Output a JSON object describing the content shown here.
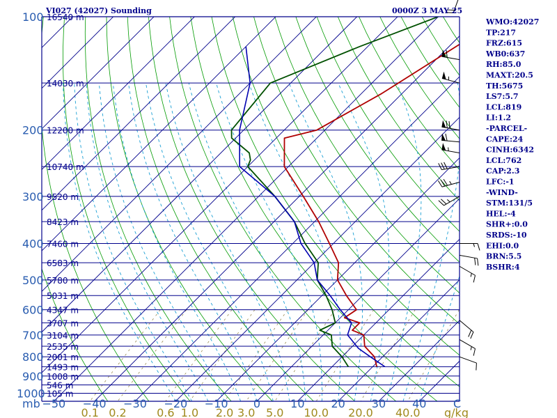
{
  "chart_data": {
    "type": "line",
    "title_left": "VI027 (42027) Sounding",
    "title_right": "0000Z  3 MAY 25",
    "pressure_ticks": [
      100,
      200,
      300,
      400,
      500,
      600,
      700,
      800,
      900,
      1000
    ],
    "mb_label": "mb",
    "temperature_ticks": [
      -50,
      -40,
      -30,
      -20,
      -10,
      0,
      10,
      20,
      30,
      40
    ],
    "temperature_unit": "C",
    "mixing_ratio_ticks": [
      "0.1",
      "0.2",
      "0.6",
      "1.0",
      "2.0",
      "3.0",
      "5.0",
      "10.0",
      "20.0",
      "40.0"
    ],
    "mixing_ratio_unit": "g/kg",
    "heights": [
      {
        "p": 100,
        "label": "16540 m"
      },
      {
        "p": 150,
        "label": "14030 m"
      },
      {
        "p": 200,
        "label": "12200 m"
      },
      {
        "p": 250,
        "label": "10740 m"
      },
      {
        "p": 300,
        "label": "9520 m"
      },
      {
        "p": 350,
        "label": "8423 m"
      },
      {
        "p": 400,
        "label": "7460 m"
      },
      {
        "p": 450,
        "label": "6583 m"
      },
      {
        "p": 500,
        "label": "5780 m"
      },
      {
        "p": 550,
        "label": "5031 m"
      },
      {
        "p": 600,
        "label": "4347 m"
      },
      {
        "p": 650,
        "label": "3707 m"
      },
      {
        "p": 700,
        "label": "3104 m"
      },
      {
        "p": 750,
        "label": "2535 m"
      },
      {
        "p": 800,
        "label": "2001 m"
      },
      {
        "p": 850,
        "label": "1493 m"
      },
      {
        "p": 900,
        "label": "1008 m"
      },
      {
        "p": 950,
        "label": "546 m"
      },
      {
        "p": 1000,
        "label": "105 m"
      }
    ],
    "series": [
      {
        "role": "temperature",
        "color": "#b00000",
        "points": [
          [
            100,
            -34
          ],
          [
            160,
            -45
          ],
          [
            200,
            -52
          ],
          [
            210,
            -58
          ],
          [
            250,
            -51
          ],
          [
            300,
            -39
          ],
          [
            350,
            -29
          ],
          [
            400,
            -21
          ],
          [
            450,
            -14
          ],
          [
            500,
            -10
          ],
          [
            550,
            -4
          ],
          [
            600,
            2
          ],
          [
            630,
            1
          ],
          [
            650,
            6
          ],
          [
            680,
            6
          ],
          [
            700,
            10
          ],
          [
            750,
            13
          ],
          [
            800,
            18
          ],
          [
            850,
            21
          ]
        ]
      },
      {
        "role": "dewpoint",
        "color": "#005000",
        "points": [
          [
            100,
            -50
          ],
          [
            120,
            -62
          ],
          [
            150,
            -75
          ],
          [
            200,
            -73
          ],
          [
            210,
            -71
          ],
          [
            230,
            -63
          ],
          [
            240,
            -61
          ],
          [
            250,
            -60
          ],
          [
            300,
            -46
          ],
          [
            350,
            -35
          ],
          [
            400,
            -27
          ],
          [
            450,
            -19
          ],
          [
            500,
            -15
          ],
          [
            550,
            -9
          ],
          [
            600,
            -4
          ],
          [
            650,
            0
          ],
          [
            680,
            -2
          ],
          [
            700,
            2
          ],
          [
            750,
            5
          ],
          [
            800,
            10
          ],
          [
            850,
            14
          ]
        ]
      },
      {
        "role": "parcel",
        "color": "#0000b0",
        "points": [
          [
            120,
            -90
          ],
          [
            150,
            -80
          ],
          [
            200,
            -71
          ],
          [
            250,
            -62
          ],
          [
            300,
            -46
          ],
          [
            350,
            -35
          ],
          [
            400,
            -28
          ],
          [
            450,
            -20
          ],
          [
            500,
            -15
          ],
          [
            550,
            -8
          ],
          [
            600,
            -2
          ],
          [
            650,
            4
          ],
          [
            700,
            6
          ],
          [
            760,
            12
          ],
          [
            800,
            17
          ],
          [
            850,
            23
          ]
        ]
      }
    ],
    "wind_barbs": [
      {
        "p": 88,
        "direction": 200,
        "speed": 20
      },
      {
        "p": 130,
        "direction": 280,
        "speed": 60
      },
      {
        "p": 150,
        "direction": 285,
        "speed": 55
      },
      {
        "p": 200,
        "direction": 280,
        "speed": 70
      },
      {
        "p": 215,
        "direction": 275,
        "speed": 60
      },
      {
        "p": 230,
        "direction": 280,
        "speed": 55
      },
      {
        "p": 250,
        "direction": 260,
        "speed": 30
      },
      {
        "p": 275,
        "direction": 255,
        "speed": 35
      },
      {
        "p": 300,
        "direction": 240,
        "speed": 25
      },
      {
        "p": 400,
        "direction": 90,
        "speed": 15
      },
      {
        "p": 430,
        "direction": 100,
        "speed": 20
      },
      {
        "p": 460,
        "direction": 120,
        "speed": 15
      },
      {
        "p": 640,
        "direction": 130,
        "speed": 20
      },
      {
        "p": 720,
        "direction": 120,
        "speed": 15
      },
      {
        "p": 800,
        "direction": 110,
        "speed": 10
      }
    ]
  },
  "sidebar": [
    "WMO:42027",
    "TP:217",
    "FRZ:615",
    "WB0:637",
    "RH:85.0",
    "MAXT:20.5",
    "TH:5675",
    "LS7:5.7",
    "LCL:819",
    "LI:1.2",
    "-PARCEL-",
    "CAPE:24",
    "CINH:6342",
    "LCL:762",
    "CAP:2.3",
    "LFC:-1",
    "-WIND-",
    "STM:131/5",
    "HEL:-4",
    "SHR+:0.0",
    "SRDS:-10",
    "EHI:0.0",
    "BRN:5.5",
    "BSHR:4"
  ],
  "colors": {
    "isobar": "#00008b",
    "isotherm": "#00008b",
    "dry_adiabat": "#009a00",
    "moist_adiabat": "#1a9fd4",
    "mixing_ratio": "#8a7a3a",
    "frame": "#00008b",
    "text": "#00008b",
    "pressure_label": "#2a5db0",
    "mixing_label": "#a08a1e"
  }
}
